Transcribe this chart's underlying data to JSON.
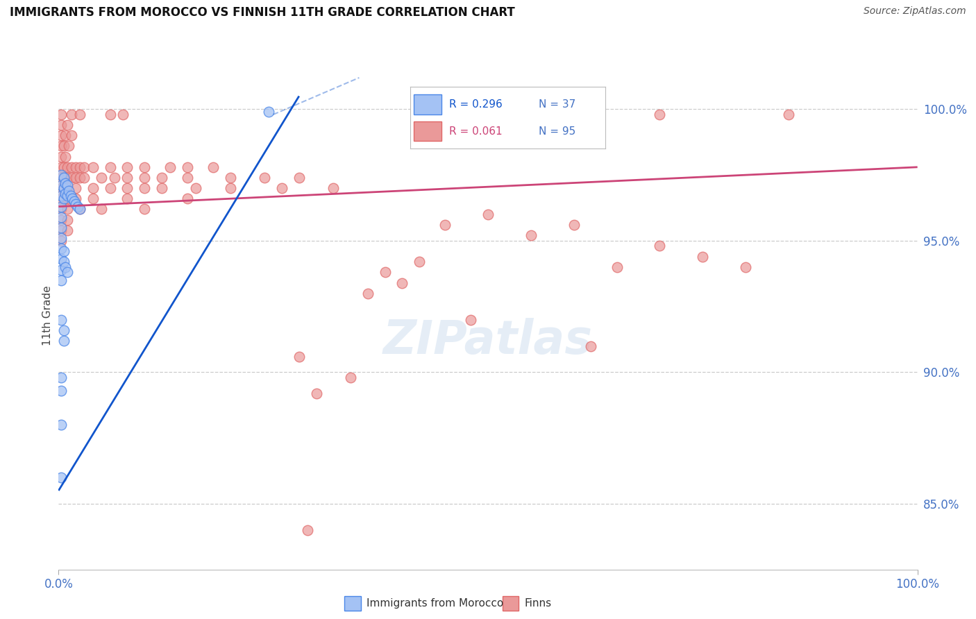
{
  "title": "IMMIGRANTS FROM MOROCCO VS FINNISH 11TH GRADE CORRELATION CHART",
  "source": "Source: ZipAtlas.com",
  "ylabel": "11th Grade",
  "y_tick_labels": [
    "100.0%",
    "95.0%",
    "90.0%",
    "85.0%"
  ],
  "y_tick_values": [
    1.0,
    0.95,
    0.9,
    0.85
  ],
  "x_range": [
    0.0,
    1.0
  ],
  "y_range": [
    0.825,
    1.018
  ],
  "legend_r_blue": "R = 0.296",
  "legend_n_blue": "N = 37",
  "legend_r_pink": "R = 0.061",
  "legend_n_pink": "N = 95",
  "blue_fill_color": "#a4c2f4",
  "blue_edge_color": "#4a86e8",
  "pink_fill_color": "#ea9999",
  "pink_edge_color": "#e06666",
  "blue_line_color": "#1155cc",
  "pink_line_color": "#cc4477",
  "blue_scatter": [
    [
      0.003,
      0.975
    ],
    [
      0.003,
      0.971
    ],
    [
      0.003,
      0.967
    ],
    [
      0.003,
      0.963
    ],
    [
      0.003,
      0.959
    ],
    [
      0.003,
      0.955
    ],
    [
      0.003,
      0.951
    ],
    [
      0.006,
      0.974
    ],
    [
      0.006,
      0.97
    ],
    [
      0.006,
      0.966
    ],
    [
      0.008,
      0.972
    ],
    [
      0.008,
      0.968
    ],
    [
      0.01,
      0.971
    ],
    [
      0.01,
      0.967
    ],
    [
      0.012,
      0.969
    ],
    [
      0.014,
      0.967
    ],
    [
      0.016,
      0.966
    ],
    [
      0.018,
      0.965
    ],
    [
      0.02,
      0.964
    ],
    [
      0.022,
      0.963
    ],
    [
      0.025,
      0.962
    ],
    [
      0.003,
      0.947
    ],
    [
      0.003,
      0.943
    ],
    [
      0.003,
      0.939
    ],
    [
      0.003,
      0.935
    ],
    [
      0.006,
      0.946
    ],
    [
      0.006,
      0.942
    ],
    [
      0.008,
      0.94
    ],
    [
      0.01,
      0.938
    ],
    [
      0.003,
      0.92
    ],
    [
      0.006,
      0.916
    ],
    [
      0.006,
      0.912
    ],
    [
      0.003,
      0.898
    ],
    [
      0.003,
      0.893
    ],
    [
      0.003,
      0.88
    ],
    [
      0.003,
      0.86
    ],
    [
      0.245,
      0.999
    ]
  ],
  "pink_scatter": [
    [
      0.003,
      0.998
    ],
    [
      0.015,
      0.998
    ],
    [
      0.025,
      0.998
    ],
    [
      0.06,
      0.998
    ],
    [
      0.075,
      0.998
    ],
    [
      0.55,
      0.998
    ],
    [
      0.7,
      0.998
    ],
    [
      0.85,
      0.998
    ],
    [
      0.003,
      0.994
    ],
    [
      0.01,
      0.994
    ],
    [
      0.003,
      0.99
    ],
    [
      0.008,
      0.99
    ],
    [
      0.015,
      0.99
    ],
    [
      0.003,
      0.986
    ],
    [
      0.006,
      0.986
    ],
    [
      0.012,
      0.986
    ],
    [
      0.003,
      0.982
    ],
    [
      0.008,
      0.982
    ],
    [
      0.003,
      0.978
    ],
    [
      0.006,
      0.978
    ],
    [
      0.01,
      0.978
    ],
    [
      0.015,
      0.978
    ],
    [
      0.02,
      0.978
    ],
    [
      0.025,
      0.978
    ],
    [
      0.03,
      0.978
    ],
    [
      0.04,
      0.978
    ],
    [
      0.06,
      0.978
    ],
    [
      0.08,
      0.978
    ],
    [
      0.1,
      0.978
    ],
    [
      0.13,
      0.978
    ],
    [
      0.15,
      0.978
    ],
    [
      0.18,
      0.978
    ],
    [
      0.003,
      0.974
    ],
    [
      0.006,
      0.974
    ],
    [
      0.01,
      0.974
    ],
    [
      0.015,
      0.974
    ],
    [
      0.02,
      0.974
    ],
    [
      0.025,
      0.974
    ],
    [
      0.03,
      0.974
    ],
    [
      0.05,
      0.974
    ],
    [
      0.065,
      0.974
    ],
    [
      0.08,
      0.974
    ],
    [
      0.1,
      0.974
    ],
    [
      0.12,
      0.974
    ],
    [
      0.15,
      0.974
    ],
    [
      0.2,
      0.974
    ],
    [
      0.24,
      0.974
    ],
    [
      0.28,
      0.974
    ],
    [
      0.003,
      0.97
    ],
    [
      0.006,
      0.97
    ],
    [
      0.01,
      0.97
    ],
    [
      0.02,
      0.97
    ],
    [
      0.04,
      0.97
    ],
    [
      0.06,
      0.97
    ],
    [
      0.08,
      0.97
    ],
    [
      0.1,
      0.97
    ],
    [
      0.12,
      0.97
    ],
    [
      0.16,
      0.97
    ],
    [
      0.2,
      0.97
    ],
    [
      0.26,
      0.97
    ],
    [
      0.32,
      0.97
    ],
    [
      0.003,
      0.966
    ],
    [
      0.01,
      0.966
    ],
    [
      0.02,
      0.966
    ],
    [
      0.04,
      0.966
    ],
    [
      0.08,
      0.966
    ],
    [
      0.15,
      0.966
    ],
    [
      0.003,
      0.962
    ],
    [
      0.01,
      0.962
    ],
    [
      0.025,
      0.962
    ],
    [
      0.05,
      0.962
    ],
    [
      0.1,
      0.962
    ],
    [
      0.003,
      0.958
    ],
    [
      0.01,
      0.958
    ],
    [
      0.003,
      0.954
    ],
    [
      0.01,
      0.954
    ],
    [
      0.003,
      0.95
    ],
    [
      0.45,
      0.956
    ],
    [
      0.5,
      0.96
    ],
    [
      0.55,
      0.952
    ],
    [
      0.6,
      0.956
    ],
    [
      0.65,
      0.94
    ],
    [
      0.7,
      0.948
    ],
    [
      0.75,
      0.944
    ],
    [
      0.8,
      0.94
    ],
    [
      0.38,
      0.938
    ],
    [
      0.42,
      0.942
    ],
    [
      0.36,
      0.93
    ],
    [
      0.4,
      0.934
    ],
    [
      0.48,
      0.92
    ],
    [
      0.62,
      0.91
    ],
    [
      0.28,
      0.906
    ],
    [
      0.34,
      0.898
    ],
    [
      0.3,
      0.892
    ],
    [
      0.29,
      0.84
    ]
  ],
  "blue_trend_x": [
    0.0,
    0.28
  ],
  "blue_trend_y": [
    0.855,
    1.005
  ],
  "pink_trend_x": [
    0.0,
    1.0
  ],
  "pink_trend_y": [
    0.963,
    0.978
  ],
  "grid_color": "#cccccc",
  "background_color": "#ffffff",
  "title_fontsize": 12,
  "axis_tick_color": "#4472c4",
  "legend_blue_text_color": "#1155cc",
  "legend_pink_text_color": "#cc4477"
}
